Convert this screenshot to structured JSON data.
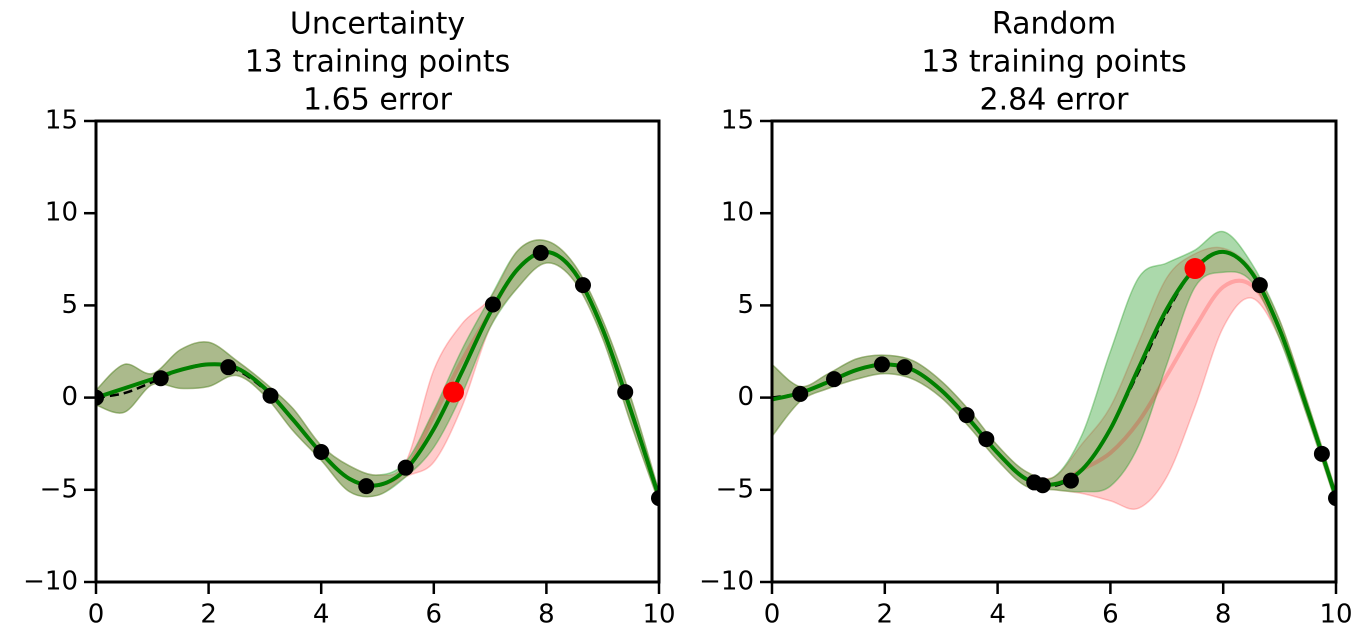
{
  "chart_data": [
    {
      "type": "line",
      "title": [
        "Uncertainty",
        "13 training points",
        "1.65 error"
      ],
      "x": [
        0,
        0.5,
        1,
        1.5,
        2,
        2.5,
        3,
        3.5,
        4,
        4.5,
        5,
        5.5,
        6,
        6.5,
        7,
        7.5,
        8,
        8.5,
        9,
        9.5,
        10
      ],
      "bands": [
        {
          "color": "#ff0000",
          "opacity": 0.2,
          "upper": [
            0.4,
            1.8,
            1.3,
            2.6,
            3.0,
            2.0,
            0.8,
            -0.6,
            -2.6,
            -3.7,
            -4.2,
            -3.5,
            1.5,
            4.0,
            5.4,
            8.0,
            8.5,
            7.2,
            4.2,
            0.0,
            -5.1
          ],
          "lower": [
            -0.4,
            -0.8,
            0.7,
            0.5,
            0.6,
            1.2,
            0.1,
            -1.8,
            -3.4,
            -5.1,
            -5.3,
            -4.3,
            -3.5,
            -0.5,
            3.8,
            6.0,
            7.3,
            6.3,
            3.2,
            -1.4,
            -5.7
          ]
        },
        {
          "color": "#2ca02c",
          "opacity": 0.4,
          "upper": [
            0.4,
            1.8,
            1.3,
            2.6,
            3.0,
            2.0,
            0.8,
            -0.6,
            -2.6,
            -3.7,
            -4.2,
            -3.5,
            -0.7,
            2.6,
            5.4,
            8.0,
            8.5,
            7.2,
            4.2,
            0.0,
            -5.1
          ],
          "lower": [
            -0.4,
            -0.8,
            0.7,
            0.5,
            0.6,
            1.2,
            0.1,
            -1.8,
            -3.4,
            -5.1,
            -5.3,
            -4.3,
            -2.7,
            0.2,
            3.8,
            6.0,
            7.3,
            6.3,
            3.2,
            -1.4,
            -5.7
          ]
        }
      ],
      "series": [
        {
          "color": "#ff0000",
          "opacity": 0.2,
          "width": 4,
          "dashed": false,
          "values": [
            0,
            0.5,
            1.0,
            1.5,
            1.8,
            1.6,
            0.5,
            -1.2,
            -3.0,
            -4.4,
            -4.75,
            -3.9,
            -1.0,
            2.0,
            4.6,
            7.0,
            7.9,
            6.8,
            3.7,
            -0.7,
            -5.4
          ]
        },
        {
          "color": "#000000",
          "opacity": 1,
          "width": 2.5,
          "dashed": true,
          "values": [
            0,
            0.24,
            0.84,
            1.5,
            1.82,
            1.5,
            0.42,
            -1.23,
            -3.03,
            -4.4,
            -4.79,
            -3.88,
            -1.68,
            1.4,
            4.6,
            7.04,
            7.92,
            6.79,
            3.71,
            -0.71,
            -5.44
          ]
        },
        {
          "color": "#008000",
          "opacity": 1,
          "width": 4,
          "dashed": false,
          "values": [
            0,
            0.5,
            1.0,
            1.5,
            1.8,
            1.6,
            0.5,
            -1.2,
            -3.0,
            -4.4,
            -4.75,
            -3.9,
            -1.7,
            1.4,
            4.6,
            7.0,
            7.9,
            6.8,
            3.7,
            -0.7,
            -5.4
          ]
        }
      ],
      "points": [
        {
          "color": "#000000",
          "x": [
            0,
            1.15,
            2.35,
            3.1,
            4,
            4.8,
            5.5,
            7.05,
            7.9,
            8.65,
            9.4,
            10
          ],
          "y": [
            0,
            1.05,
            1.65,
            0.1,
            -2.95,
            -4.8,
            -3.8,
            5.05,
            7.85,
            6.1,
            0.3,
            -5.45
          ]
        },
        {
          "color": "#ff0000",
          "x": [
            6.35
          ],
          "y": [
            0.3
          ]
        }
      ],
      "xlim": [
        0,
        10
      ],
      "xticks": [
        0,
        2,
        4,
        6,
        8,
        10
      ],
      "ylim": [
        -10,
        15
      ],
      "yticks": [
        {
          "value": -10,
          "label": "−10"
        },
        {
          "value": -5,
          "label": "−5"
        },
        0,
        5,
        10,
        15
      ]
    },
    {
      "type": "line",
      "title": [
        "Random",
        "13 training points",
        "2.84 error"
      ],
      "x": [
        0,
        0.5,
        1,
        1.5,
        2,
        2.5,
        3,
        3.5,
        4,
        4.5,
        5,
        5.5,
        6,
        6.5,
        7,
        7.5,
        8,
        8.5,
        9,
        9.5,
        10
      ],
      "bands": [
        {
          "color": "#ff0000",
          "opacity": 0.2,
          "upper": [
            1.8,
            0.6,
            1.3,
            2.1,
            2.3,
            2.0,
            0.9,
            -0.7,
            -2.6,
            -4.0,
            -4.3,
            -2.5,
            -0.5,
            3.0,
            6.5,
            7.8,
            8.1,
            7.0,
            4.2,
            -0.3,
            -5.1
          ],
          "lower": [
            -2.1,
            -0.2,
            0.5,
            1.0,
            1.3,
            1.0,
            0.0,
            -1.6,
            -3.4,
            -4.8,
            -5.0,
            -5.2,
            -5.6,
            -6.0,
            -4.3,
            -0.5,
            3.8,
            5.4,
            3.2,
            -1.1,
            -5.7
          ]
        },
        {
          "color": "#2ca02c",
          "opacity": 0.4,
          "upper": [
            1.8,
            0.6,
            1.3,
            2.1,
            2.3,
            2.0,
            0.9,
            -0.7,
            -2.6,
            -4.0,
            -4.3,
            -2.0,
            2.5,
            6.5,
            7.3,
            8.0,
            9.0,
            7.3,
            4.2,
            -0.3,
            -5.1
          ],
          "lower": [
            -2.1,
            -0.2,
            0.5,
            1.0,
            1.3,
            1.0,
            0.0,
            -1.6,
            -3.4,
            -4.8,
            -5.0,
            -5.1,
            -4.8,
            -2.6,
            1.8,
            6.0,
            6.8,
            6.3,
            3.2,
            -1.1,
            -5.7
          ]
        }
      ],
      "series": [
        {
          "color": "#ff0000",
          "opacity": 0.2,
          "width": 4,
          "dashed": false,
          "values": [
            -0.1,
            0.25,
            0.85,
            1.5,
            1.8,
            1.5,
            0.4,
            -1.2,
            -3.0,
            -4.4,
            -4.7,
            -3.9,
            -3.0,
            -1.3,
            1.2,
            3.8,
            6.0,
            6.1,
            3.7,
            -0.7,
            -5.4
          ]
        },
        {
          "color": "#000000",
          "opacity": 1,
          "width": 2.5,
          "dashed": true,
          "values": [
            0,
            0.24,
            0.84,
            1.5,
            1.82,
            1.5,
            0.42,
            -1.23,
            -3.03,
            -4.4,
            -4.79,
            -3.88,
            -1.68,
            1.4,
            4.6,
            7.04,
            7.92,
            6.79,
            3.71,
            -0.71,
            -5.44
          ]
        },
        {
          "color": "#008000",
          "opacity": 1,
          "width": 4,
          "dashed": false,
          "values": [
            -0.1,
            0.25,
            0.85,
            1.5,
            1.8,
            1.5,
            0.4,
            -1.2,
            -3.0,
            -4.4,
            -4.7,
            -3.9,
            -1.7,
            1.6,
            4.8,
            7.0,
            7.9,
            6.8,
            3.7,
            -0.7,
            -5.4
          ]
        }
      ],
      "points": [
        {
          "color": "#000000",
          "x": [
            0.5,
            1.1,
            1.95,
            2.35,
            3.45,
            3.8,
            4.65,
            4.8,
            5.3,
            8.65,
            9.75,
            10
          ],
          "y": [
            0.2,
            1.0,
            1.8,
            1.65,
            -0.95,
            -2.25,
            -4.6,
            -4.75,
            -4.5,
            6.1,
            -3.05,
            -5.45
          ]
        },
        {
          "color": "#ff0000",
          "x": [
            7.5
          ],
          "y": [
            7.0
          ]
        }
      ],
      "xlim": [
        0,
        10
      ],
      "xticks": [
        0,
        2,
        4,
        6,
        8,
        10
      ],
      "ylim": [
        -10,
        15
      ],
      "yticks": [
        {
          "value": -10,
          "label": "−10"
        },
        {
          "value": -5,
          "label": "−5"
        },
        0,
        5,
        10,
        15
      ]
    }
  ]
}
